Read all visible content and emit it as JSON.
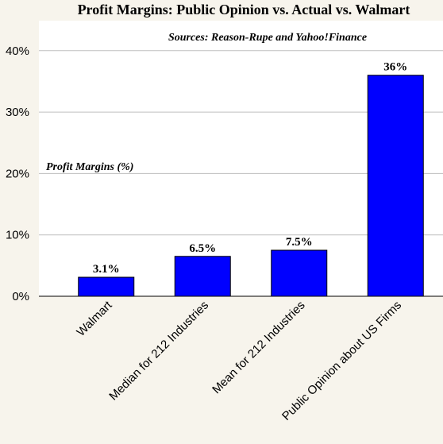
{
  "colors": {
    "background": "#f7f4ec",
    "plot_background": "#ffffff",
    "bar_fill": "#0000ff",
    "bar_stroke": "#000000",
    "gridline": "#bfbfbf"
  },
  "chart_data": {
    "type": "bar",
    "title": "Profit Margins: Public Opinion vs. Actual vs. Walmart",
    "subtitle": "Sources: Reason-Rupe and Yahoo!Finance",
    "ylabel": "Profit Margins (%)",
    "xlabel": "",
    "ylim": [
      0,
      45
    ],
    "yticks": [
      0,
      10,
      20,
      30,
      40
    ],
    "ytick_labels": [
      "0%",
      "10%",
      "20%",
      "30%",
      "40%"
    ],
    "grid": true,
    "legend": "none",
    "categories": [
      "Walmart",
      "Median for 212 Industries",
      "Mean for 212 Industries",
      "Public Opinion about US Firms"
    ],
    "values": [
      3.1,
      6.5,
      7.5,
      36
    ],
    "data_labels": [
      "3.1%",
      "6.5%",
      "7.5%",
      "36%"
    ]
  }
}
